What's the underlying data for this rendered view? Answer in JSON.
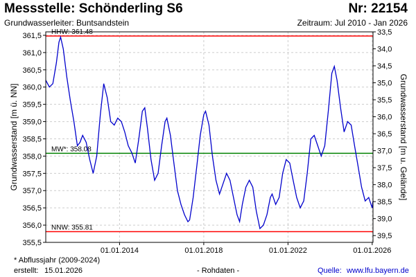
{
  "header": {
    "title": "Messstelle: Schönderling S6",
    "number": "Nr: 22154",
    "aquifer": "Grundwasserleiter: Buntsandstein",
    "period": "Zeitraum: Jul 2010 - Jan 2026"
  },
  "footer": {
    "footnote": "* Abflussjahr (2009-2024)",
    "created_label": "erstellt:",
    "created_date": "15.01.2026",
    "status": "- Rohdaten -",
    "source_label": "Quelle:",
    "source_url": "www.lfu.bayern.de"
  },
  "colors": {
    "series": "#0000cc",
    "hhw": "#ff0000",
    "nnw": "#ff0000",
    "mw": "#008000",
    "grid": "#cccccc"
  },
  "chart_data": {
    "type": "line",
    "title": "",
    "ylabel": "Grundwasserstand [m ü. NN]",
    "y2label": "Grundwasserstand [m u. Gelände]",
    "xlim": [
      "2010-07-01",
      "2026-01-15"
    ],
    "ylim": [
      355.5,
      361.6
    ],
    "y2lim": [
      39.7,
      33.5
    ],
    "ticks_left": [
      "355,5",
      "356,0",
      "356,5",
      "357,0",
      "357,5",
      "358,0",
      "358,5",
      "359,0",
      "359,5",
      "360,0",
      "360,5",
      "361,0",
      "361,5"
    ],
    "ticks_right": [
      "33,5",
      "34,0",
      "34,5",
      "35,0",
      "35,5",
      "36,0",
      "36,5",
      "37,0",
      "37,5",
      "38,0",
      "38,5",
      "39,0",
      "39,5"
    ],
    "x_ticks": [
      {
        "date": "2014-01-01",
        "label": "01.01.2014"
      },
      {
        "date": "2018-01-01",
        "label": "01.01.2018"
      },
      {
        "date": "2022-01-01",
        "label": "01.01.2022"
      },
      {
        "date": "2026-01-01",
        "label": "01.01.2026"
      }
    ],
    "grid": true,
    "reference_lines": [
      {
        "key": "hhw",
        "label": "HHW: 361.48",
        "value": 361.48
      },
      {
        "key": "mw",
        "label": "MW*: 358.08",
        "value": 358.08
      },
      {
        "key": "nnw",
        "label": "NNW: 355.81",
        "value": 355.81
      }
    ],
    "series": [
      {
        "points": [
          [
            "2010-07-01",
            360.2
          ],
          [
            "2010-09-01",
            360.0
          ],
          [
            "2010-11-01",
            360.1
          ],
          [
            "2011-01-01",
            360.7
          ],
          [
            "2011-02-15",
            361.3
          ],
          [
            "2011-03-15",
            361.45
          ],
          [
            "2011-05-01",
            361.1
          ],
          [
            "2011-07-01",
            360.3
          ],
          [
            "2011-09-01",
            359.6
          ],
          [
            "2011-11-01",
            359.0
          ],
          [
            "2012-01-01",
            358.3
          ],
          [
            "2012-02-15",
            358.4
          ],
          [
            "2012-04-01",
            358.6
          ],
          [
            "2012-06-01",
            358.4
          ],
          [
            "2012-08-01",
            357.9
          ],
          [
            "2012-10-01",
            357.5
          ],
          [
            "2012-12-01",
            358.0
          ],
          [
            "2013-02-01",
            359.2
          ],
          [
            "2013-04-01",
            360.1
          ],
          [
            "2013-06-01",
            359.7
          ],
          [
            "2013-08-01",
            359.0
          ],
          [
            "2013-10-01",
            358.9
          ],
          [
            "2013-12-01",
            359.1
          ],
          [
            "2014-02-01",
            359.0
          ],
          [
            "2014-04-01",
            358.7
          ],
          [
            "2014-06-01",
            358.3
          ],
          [
            "2014-08-01",
            358.1
          ],
          [
            "2014-10-01",
            357.8
          ],
          [
            "2014-12-01",
            358.5
          ],
          [
            "2015-02-01",
            359.3
          ],
          [
            "2015-03-15",
            359.4
          ],
          [
            "2015-05-01",
            358.8
          ],
          [
            "2015-07-01",
            357.9
          ],
          [
            "2015-09-01",
            357.3
          ],
          [
            "2015-11-01",
            357.5
          ],
          [
            "2016-01-01",
            358.3
          ],
          [
            "2016-03-01",
            359.0
          ],
          [
            "2016-04-01",
            359.1
          ],
          [
            "2016-06-01",
            358.6
          ],
          [
            "2016-08-01",
            357.8
          ],
          [
            "2016-10-01",
            357.0
          ],
          [
            "2016-12-01",
            356.6
          ],
          [
            "2017-02-01",
            356.3
          ],
          [
            "2017-04-01",
            356.1
          ],
          [
            "2017-05-01",
            356.15
          ],
          [
            "2017-07-01",
            356.8
          ],
          [
            "2017-09-01",
            357.7
          ],
          [
            "2017-11-01",
            358.6
          ],
          [
            "2018-01-01",
            359.2
          ],
          [
            "2018-02-01",
            359.3
          ],
          [
            "2018-04-01",
            358.9
          ],
          [
            "2018-06-01",
            358.0
          ],
          [
            "2018-08-01",
            357.3
          ],
          [
            "2018-10-01",
            356.9
          ],
          [
            "2018-12-01",
            357.2
          ],
          [
            "2019-02-01",
            357.5
          ],
          [
            "2019-04-01",
            357.3
          ],
          [
            "2019-06-01",
            356.8
          ],
          [
            "2019-08-01",
            356.3
          ],
          [
            "2019-09-15",
            356.1
          ],
          [
            "2019-11-01",
            356.6
          ],
          [
            "2020-01-01",
            357.1
          ],
          [
            "2020-03-01",
            357.3
          ],
          [
            "2020-05-01",
            357.1
          ],
          [
            "2020-07-01",
            356.4
          ],
          [
            "2020-09-01",
            355.9
          ],
          [
            "2020-11-01",
            356.0
          ],
          [
            "2021-01-01",
            356.3
          ],
          [
            "2021-03-01",
            356.8
          ],
          [
            "2021-04-01",
            356.9
          ],
          [
            "2021-06-01",
            356.6
          ],
          [
            "2021-08-01",
            356.8
          ],
          [
            "2021-10-01",
            357.5
          ],
          [
            "2021-12-01",
            357.9
          ],
          [
            "2022-02-01",
            357.8
          ],
          [
            "2022-04-01",
            357.3
          ],
          [
            "2022-06-01",
            356.8
          ],
          [
            "2022-08-01",
            356.5
          ],
          [
            "2022-10-01",
            356.7
          ],
          [
            "2022-12-01",
            357.5
          ],
          [
            "2023-02-01",
            358.5
          ],
          [
            "2023-04-01",
            358.6
          ],
          [
            "2023-06-01",
            358.3
          ],
          [
            "2023-08-01",
            358.0
          ],
          [
            "2023-10-01",
            358.3
          ],
          [
            "2023-12-01",
            359.3
          ],
          [
            "2024-02-01",
            360.4
          ],
          [
            "2024-03-15",
            360.6
          ],
          [
            "2024-05-01",
            360.2
          ],
          [
            "2024-07-01",
            359.4
          ],
          [
            "2024-09-01",
            358.7
          ],
          [
            "2024-11-01",
            359.0
          ],
          [
            "2025-01-01",
            358.9
          ],
          [
            "2025-03-01",
            358.3
          ],
          [
            "2025-05-01",
            357.7
          ],
          [
            "2025-07-01",
            357.1
          ],
          [
            "2025-09-01",
            356.7
          ],
          [
            "2025-11-01",
            356.8
          ],
          [
            "2026-01-01",
            356.5
          ],
          [
            "2026-01-15",
            356.7
          ]
        ]
      }
    ]
  }
}
